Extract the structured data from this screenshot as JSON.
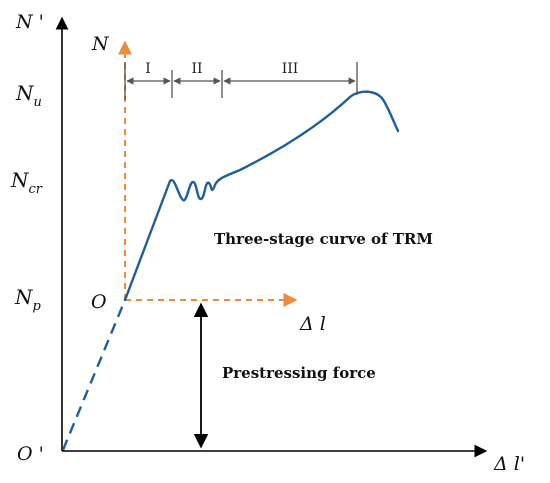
{
  "axes": {
    "outer_y_label": "N '",
    "outer_x_label": "Δ l'",
    "outer_origin_label": "O '",
    "inner_y_label": "N",
    "inner_x_label": "Δ l",
    "inner_origin_label": "O"
  },
  "force_levels": {
    "nu": {
      "base": "N",
      "sub": "u"
    },
    "ncr": {
      "base": "N",
      "sub": "cr"
    },
    "np": {
      "base": "N",
      "sub": "p"
    }
  },
  "stages": [
    "I",
    "II",
    "III"
  ],
  "annotations": {
    "curve_title": "Three-stage curve of TRM",
    "prestress_label": "Prestressing force"
  },
  "colors": {
    "curve": "#1f5f9e",
    "inner_axes": "#ee8a3c",
    "axes": "#000000",
    "stage_markers": "#555555"
  }
}
